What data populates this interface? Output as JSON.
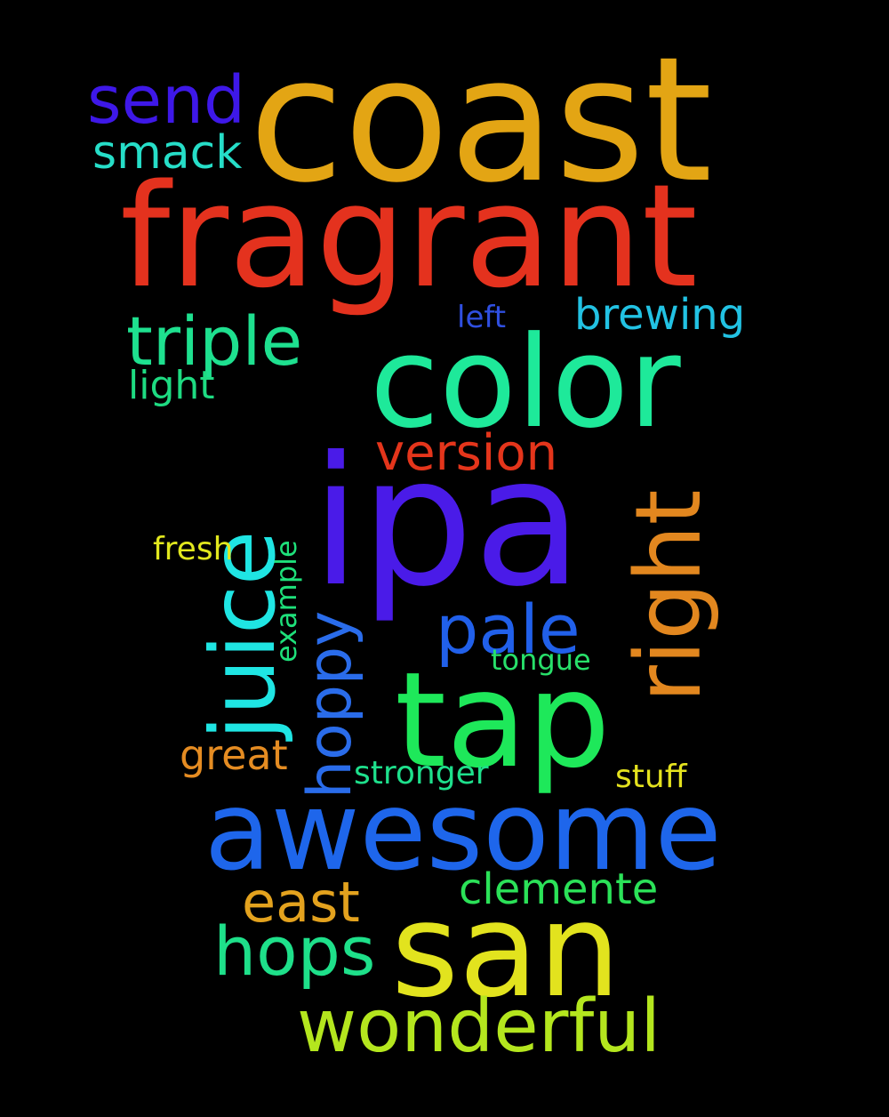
{
  "words": {
    "coast": {
      "text": "coast",
      "color": "#E3A514"
    },
    "fragrant": {
      "text": "fragrant",
      "color": "#E4321E"
    },
    "send": {
      "text": "send",
      "color": "#3E18E8"
    },
    "smack": {
      "text": "smack",
      "color": "#26DEC8"
    },
    "triple": {
      "text": "triple",
      "color": "#1EE08F"
    },
    "left": {
      "text": "left",
      "color": "#2F4FE0"
    },
    "brewing": {
      "text": "brewing",
      "color": "#22C2E3"
    },
    "color": {
      "text": "color",
      "color": "#1EE99A"
    },
    "light": {
      "text": "light",
      "color": "#1EDB82"
    },
    "juice": {
      "text": "juice",
      "color": "#1FE5E3"
    },
    "version": {
      "text": "version",
      "color": "#E4351B"
    },
    "ipa": {
      "text": "ipa",
      "color": "#4A1BE8"
    },
    "right": {
      "text": "right",
      "color": "#E2871F"
    },
    "fresh": {
      "text": "fresh",
      "color": "#E2E81E"
    },
    "example": {
      "text": "example",
      "color": "#1EE07A"
    },
    "hoppy": {
      "text": "hoppy",
      "color": "#2A6CEA"
    },
    "pale": {
      "text": "pale",
      "color": "#2160EA"
    },
    "tongue": {
      "text": "tongue",
      "color": "#28E06A"
    },
    "tap": {
      "text": "tap",
      "color": "#1EE85A"
    },
    "great": {
      "text": "great",
      "color": "#E58C22"
    },
    "stronger": {
      "text": "stronger",
      "color": "#1EE08C"
    },
    "stuff": {
      "text": "stuff",
      "color": "#E4E21E"
    },
    "awesome": {
      "text": "awesome",
      "color": "#1E66EB"
    },
    "clemente": {
      "text": "clemente",
      "color": "#2BE258"
    },
    "east": {
      "text": "east",
      "color": "#E3A21E"
    },
    "hops": {
      "text": "hops",
      "color": "#1EE08A"
    },
    "san": {
      "text": "san",
      "color": "#E2E31E"
    },
    "wonderful": {
      "text": "wonderful",
      "color": "#B4E61E"
    }
  }
}
